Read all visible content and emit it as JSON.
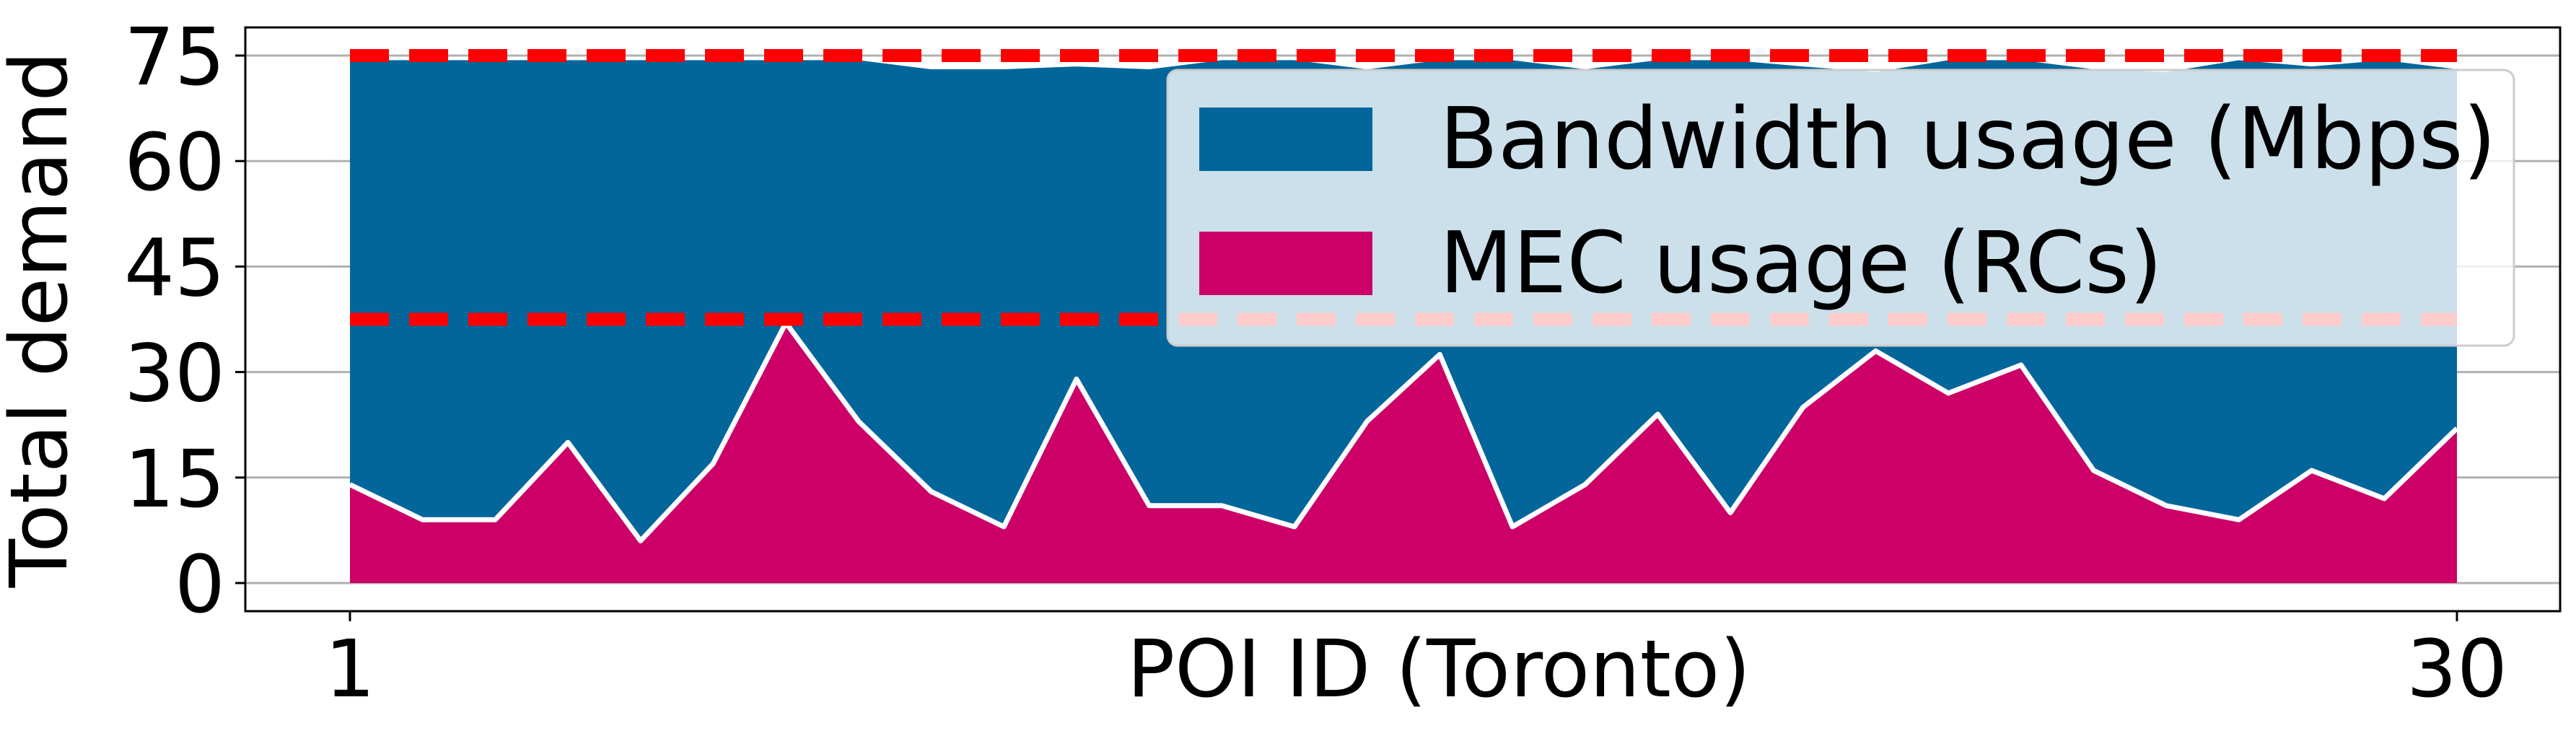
{
  "chart_data": {
    "type": "area",
    "title": "",
    "xlabel": "POI ID (Toronto)",
    "ylabel": "Total demand",
    "xlim": [
      1,
      30
    ],
    "ylim": [
      -4,
      79
    ],
    "xticks": [
      "1",
      "30"
    ],
    "xtick_values": [
      1,
      30
    ],
    "yticks": [
      "0",
      "15",
      "30",
      "45",
      "60",
      "75"
    ],
    "ytick_values": [
      0,
      15,
      30,
      45,
      60,
      75
    ],
    "grid": "horizontal",
    "legend_position": "top-right",
    "x": [
      1,
      2,
      3,
      4,
      5,
      6,
      7,
      8,
      9,
      10,
      11,
      12,
      13,
      14,
      15,
      16,
      17,
      18,
      19,
      20,
      21,
      22,
      23,
      24,
      25,
      26,
      27,
      28,
      29,
      30
    ],
    "series": [
      {
        "name": "Bandwidth usage (Mbps)",
        "color": "#03669a",
        "values": [
          74.5,
          74.5,
          74.5,
          74.5,
          74.5,
          74.5,
          74.5,
          74.5,
          73.2,
          73.2,
          73.6,
          73.2,
          74.5,
          74.5,
          73.2,
          74.5,
          74.5,
          73.2,
          74.5,
          74.5,
          73.6,
          72.8,
          74.5,
          74.5,
          73.2,
          72.8,
          74.5,
          73.6,
          74.5,
          73.2
        ]
      },
      {
        "name": "MEC usage (RCs)",
        "color": "#cc0066",
        "values": [
          14,
          9,
          9,
          20,
          6,
          17,
          37,
          23,
          13,
          8,
          29,
          11,
          11,
          8,
          23,
          32.5,
          8,
          14,
          24,
          10,
          25,
          33,
          27,
          31,
          16,
          11,
          9,
          16,
          12,
          22
        ]
      }
    ],
    "reference_lines": [
      {
        "y": 75,
        "color": "#ff0000",
        "style": "dashed"
      },
      {
        "y": 37.5,
        "color": "#ff0000",
        "style": "dashed"
      }
    ]
  }
}
